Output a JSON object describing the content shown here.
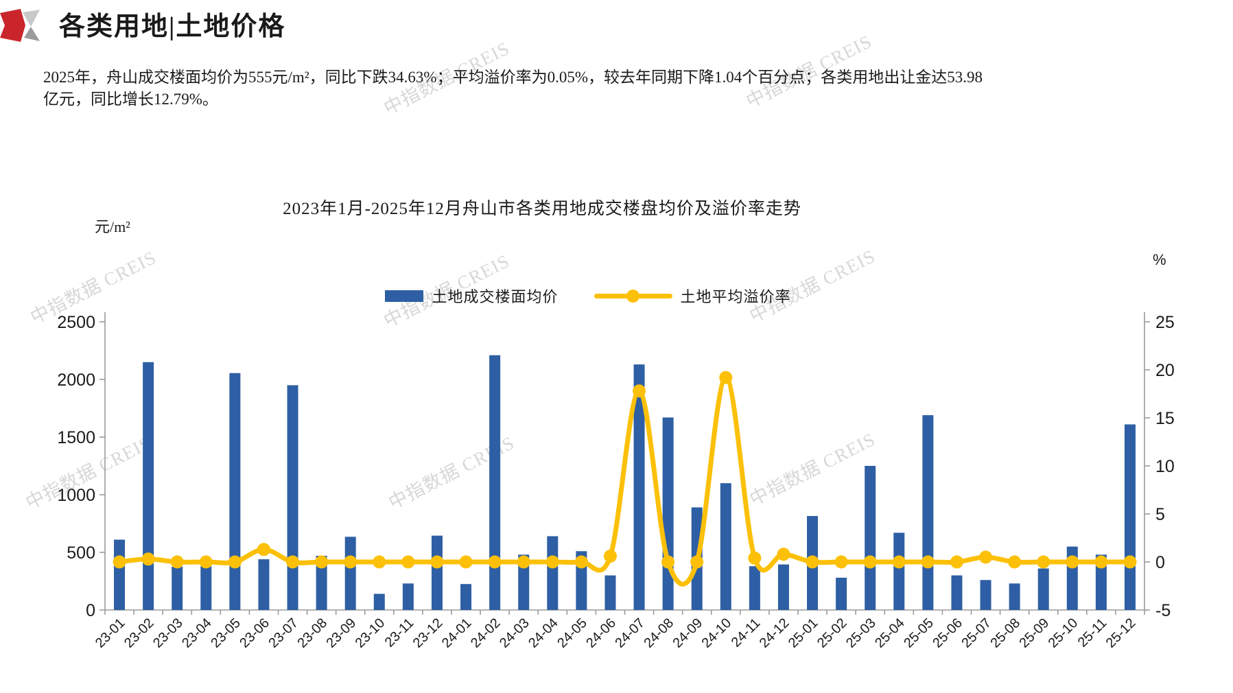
{
  "header": {
    "title": "各类用地|土地价格",
    "logo": {
      "red": "#C9252B",
      "gray_light": "#C9C9C9",
      "gray_dark": "#9B9B9B"
    }
  },
  "summary": {
    "lines": [
      "2025年，舟山成交楼面均价为555元/m²，同比下跌34.63%；平均溢价率为0.05%，较去年同期下降1.04个百分点；各类用地出让金达53.98",
      "亿元，同比增长12.79%。"
    ]
  },
  "watermark": {
    "text": "中指数据 CREIS",
    "color": "#c2c2c2"
  },
  "chart_data": {
    "type": "bar",
    "title": "2023年1月-2025年12月舟山市各类用地成交楼盘均价及溢价率走势",
    "left_axis": {
      "unit": "元/m²",
      "min": 0,
      "max": 2500,
      "ticks": [
        0,
        500,
        1000,
        1500,
        2000,
        2500
      ]
    },
    "right_axis": {
      "unit": "%",
      "min": -5,
      "max": 25,
      "ticks": [
        -5,
        0,
        5,
        10,
        15,
        20,
        25
      ]
    },
    "grid": "off",
    "legend_position": "top-center",
    "categories": [
      "23-01",
      "23-02",
      "23-03",
      "23-04",
      "23-05",
      "23-06",
      "23-07",
      "23-08",
      "23-09",
      "23-10",
      "23-11",
      "23-12",
      "24-01",
      "24-02",
      "24-03",
      "24-04",
      "24-05",
      "24-06",
      "24-07",
      "24-08",
      "24-09",
      "24-10",
      "24-11",
      "24-12",
      "25-01",
      "25-02",
      "25-03",
      "25-04",
      "25-05",
      "25-06",
      "25-07",
      "25-08",
      "25-09",
      "25-10",
      "25-11",
      "25-12"
    ],
    "series": [
      {
        "name": "土地成交楼面均价",
        "type": "bar",
        "axis": "left",
        "color": "#2E5FA4",
        "values": [
          610,
          2150,
          375,
          380,
          2055,
          440,
          1950,
          470,
          635,
          140,
          230,
          645,
          225,
          2210,
          480,
          640,
          510,
          300,
          2130,
          1670,
          890,
          1100,
          380,
          395,
          815,
          280,
          1250,
          670,
          1690,
          300,
          260,
          230,
          360,
          550,
          480,
          1610
        ]
      },
      {
        "name": "土地平均溢价率",
        "type": "line",
        "axis": "right",
        "color": "#FCC008",
        "values": [
          0,
          0.3,
          0,
          0,
          0,
          1.3,
          0,
          0,
          0,
          0,
          0,
          0,
          0,
          0,
          0,
          0,
          0,
          0.6,
          17.8,
          0,
          0,
          19.2,
          0.4,
          0.8,
          0,
          0,
          0,
          0,
          0,
          0,
          0.5,
          0,
          0,
          0,
          0,
          0
        ]
      }
    ]
  }
}
